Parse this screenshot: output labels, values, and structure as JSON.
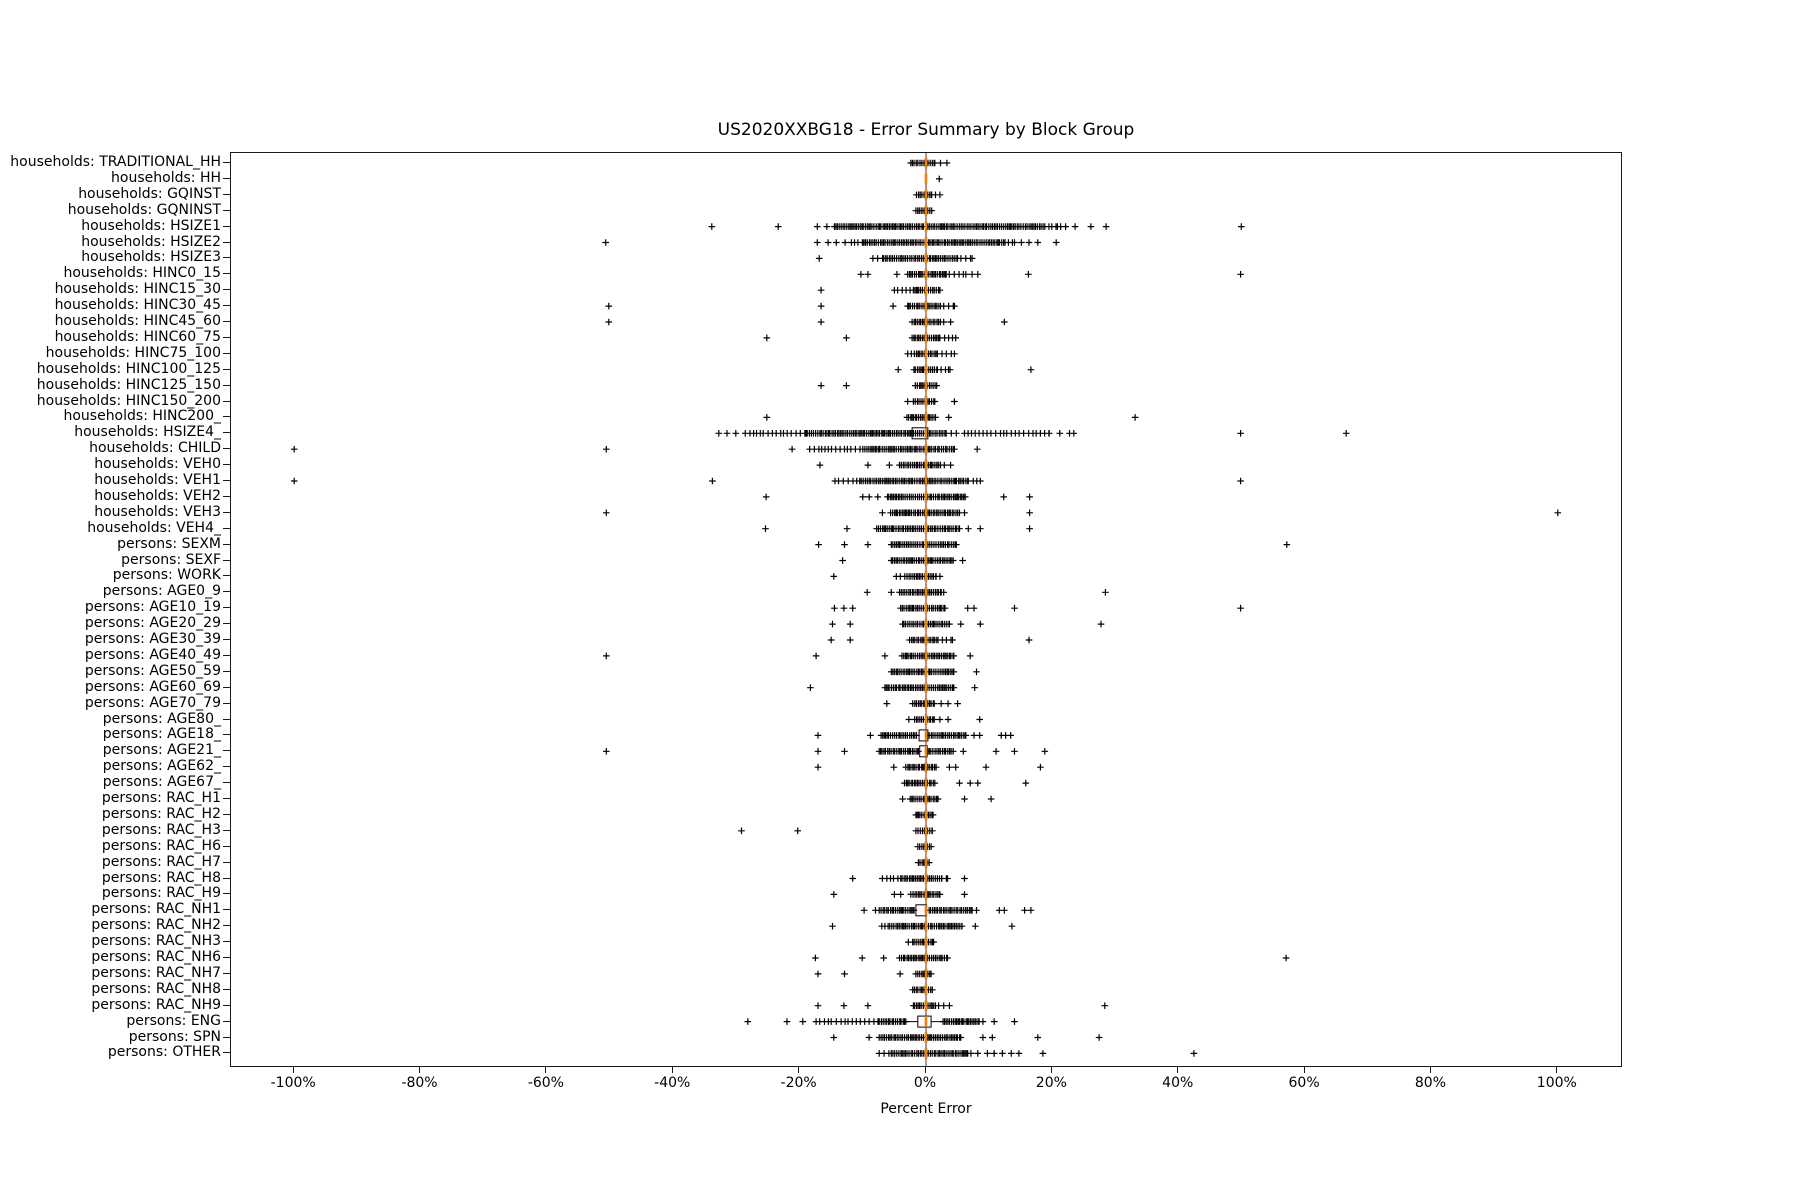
{
  "figure": {
    "title": "US2020XXBG18 - Error Summary by Block Group",
    "x_axis_label": "Percent Error"
  },
  "colors": {
    "marker": "#000000",
    "median": "#f07f0e",
    "zero_line": "#3c3c3c",
    "frame": "#1a1a1a",
    "box_fill": "#ffffff"
  },
  "chart_data": {
    "type": "scatter",
    "subtype": "horizontal-boxplot-fliers",
    "title": "US2020XXBG18 - Error Summary by Block Group",
    "xlabel": "Percent Error",
    "ylabel": "",
    "xlim": [
      -110,
      110
    ],
    "grid": false,
    "legend": "none",
    "x_ticks": [
      {
        "label": "-100%",
        "value": -100
      },
      {
        "label": "-80%",
        "value": -80
      },
      {
        "label": "-60%",
        "value": -60
      },
      {
        "label": "-40%",
        "value": -40
      },
      {
        "label": "-20%",
        "value": -20
      },
      {
        "label": "0%",
        "value": 0
      },
      {
        "label": "20%",
        "value": 20
      },
      {
        "label": "40%",
        "value": 40
      },
      {
        "label": "60%",
        "value": 60
      },
      {
        "label": "80%",
        "value": 80
      },
      {
        "label": "100%",
        "value": 100
      }
    ],
    "rows": [
      {
        "label": "households: TRADITIONAL_HH",
        "median": 0,
        "bands": [
          [
            -2.4,
            1.4,
            3
          ]
        ],
        "outliers": [
          2.3,
          3.3
        ]
      },
      {
        "label": "households: HH",
        "median": 0,
        "bands": [],
        "outliers": [
          2.1
        ]
      },
      {
        "label": "households: GQINST",
        "median": 0,
        "bands": [
          [
            -1.5,
            0.9,
            3
          ]
        ],
        "outliers": [
          1.5,
          2.2
        ]
      },
      {
        "label": "households: GQNINST",
        "median": 0,
        "bands": [
          [
            -1.6,
            0.9,
            3
          ]
        ],
        "outliers": []
      },
      {
        "label": "households: HSIZE1",
        "median": 0,
        "bands": [
          [
            -14.5,
            18.8,
            3
          ],
          [
            18.8,
            20.8,
            2
          ]
        ],
        "outliers": [
          -33.9,
          -23.4,
          -17.2,
          -15.7,
          21.3,
          22.1,
          23.6,
          26.1,
          28.5,
          49.9
        ]
      },
      {
        "label": "households: HSIZE2",
        "median": 0,
        "bands": [
          [
            -10,
            12.5,
            3
          ],
          [
            -11.8,
            -10,
            2
          ],
          [
            12.5,
            14,
            2
          ]
        ],
        "outliers": [
          -50.7,
          -17.2,
          -15.5,
          -14.2,
          -12.8,
          15.1,
          16.3,
          17.7,
          20.6
        ]
      },
      {
        "label": "households: HSIZE3",
        "median": 0,
        "bands": [
          [
            -6.7,
            5,
            3
          ],
          [
            -8.4,
            -6.7,
            2
          ],
          [
            5,
            7.3,
            2
          ]
        ],
        "outliers": [
          -16.9
        ]
      },
      {
        "label": "households: HINC0_15",
        "median": 0,
        "bands": [
          [
            -2.9,
            3.2,
            3
          ],
          [
            3.2,
            6.3,
            2
          ]
        ],
        "outliers": [
          -10.3,
          -9.2,
          -4.6,
          7.3,
          8.2,
          16.2,
          49.8
        ]
      },
      {
        "label": "households: HINC15_30",
        "median": 0,
        "bands": [
          [
            -2,
            2.2,
            3
          ],
          [
            -5,
            -2,
            2
          ]
        ],
        "outliers": [
          -16.6
        ]
      },
      {
        "label": "households: HINC30_45",
        "median": 0,
        "bands": [
          [
            -2.9,
            2.3,
            3
          ],
          [
            2.8,
            4.5,
            2
          ]
        ],
        "outliers": [
          -50.2,
          -16.6,
          -5.2
        ]
      },
      {
        "label": "households: HINC45_60",
        "median": 0,
        "bands": [
          [
            -2.2,
            2.3,
            3
          ]
        ],
        "outliers": [
          -50.2,
          -16.6,
          2.8,
          3.9,
          12.4
        ]
      },
      {
        "label": "households: HINC60_75",
        "median": 0,
        "bands": [
          [
            -2.2,
            2,
            3
          ],
          [
            2.2,
            4.2,
            2
          ]
        ],
        "outliers": [
          -25.2,
          -12.6,
          4.7
        ]
      },
      {
        "label": "households: HINC75_100",
        "median": 0,
        "bands": [
          [
            -1.5,
            1.8,
            3
          ],
          [
            -2.9,
            -1.5,
            2
          ],
          [
            1.8,
            4.5,
            2
          ]
        ],
        "outliers": []
      },
      {
        "label": "households: HINC100_125",
        "median": 0,
        "bands": [
          [
            -1.9,
            1.8,
            3
          ],
          [
            1.8,
            3.8,
            2
          ]
        ],
        "outliers": [
          -4.4,
          16.6
        ]
      },
      {
        "label": "households: HINC125_150",
        "median": 0,
        "bands": [
          [
            -1.7,
            1.7,
            3
          ]
        ],
        "outliers": [
          -16.6,
          -12.6
        ]
      },
      {
        "label": "households: HINC150_200",
        "median": 0,
        "bands": [
          [
            -2,
            1.4,
            3
          ]
        ],
        "outliers": [
          -2.9,
          4.5
        ]
      },
      {
        "label": "households: HINC200_",
        "median": 0,
        "bands": [
          [
            -3,
            1.5,
            3
          ]
        ],
        "outliers": [
          -25.2,
          3.6,
          33.1
        ]
      },
      {
        "label": "households: HSIZE4_",
        "median": 0,
        "bands": [
          [
            -19,
            -2.4,
            3
          ],
          [
            -28.6,
            -19,
            2
          ],
          [
            -2.2,
            3.2,
            3
          ],
          [
            6.1,
            19.5,
            2
          ],
          [
            19.5,
            23.4,
            1
          ]
        ],
        "outliers": [
          -32.8,
          -31.5,
          -30.1,
          4,
          4.8,
          49.8,
          66.5
        ],
        "box": [
          -2.2,
          0.3
        ]
      },
      {
        "label": "households: CHILD",
        "median": 0,
        "bands": [
          [
            -10,
            4.5,
            3
          ],
          [
            -18.4,
            -10,
            2
          ]
        ],
        "outliers": [
          -100,
          -50.6,
          -21.2,
          8.1
        ]
      },
      {
        "label": "households: VEH0",
        "median": 0,
        "bands": [
          [
            -4.2,
            2.3,
            3
          ]
        ],
        "outliers": [
          -16.8,
          -9.2,
          -5.8,
          2.9,
          3.9
        ]
      },
      {
        "label": "households: VEH1",
        "median": 0,
        "bands": [
          [
            -10.5,
            6.7,
            3
          ],
          [
            -14.4,
            -10.5,
            2
          ],
          [
            6.7,
            8.6,
            2
          ]
        ],
        "outliers": [
          -100,
          -33.8,
          49.8
        ]
      },
      {
        "label": "households: VEH2",
        "median": 0,
        "bands": [
          [
            -6.1,
            6.2,
            3
          ],
          [
            -10,
            -6.1,
            1
          ]
        ],
        "outliers": [
          -25.3,
          12.3,
          16.4
        ]
      },
      {
        "label": "households: VEH3",
        "median": 0,
        "bands": [
          [
            -5.6,
            5.3,
            3
          ]
        ],
        "outliers": [
          -50.6,
          -6.9,
          6.1,
          16.4,
          100
        ]
      },
      {
        "label": "households: VEH4_",
        "median": 0,
        "bands": [
          [
            -7.8,
            5.3,
            3
          ]
        ],
        "outliers": [
          -25.4,
          -12.5,
          6.7,
          8.6,
          16.4
        ]
      },
      {
        "label": "persons: SEXM",
        "median": 0,
        "bands": [
          [
            -5.5,
            4.8,
            3
          ]
        ],
        "outliers": [
          -17,
          -12.9,
          -9.2,
          57.1
        ]
      },
      {
        "label": "persons: SEXF",
        "median": 0,
        "bands": [
          [
            -5.5,
            4.3,
            3
          ]
        ],
        "outliers": [
          -13.2,
          5.8
        ]
      },
      {
        "label": "persons: WORK",
        "median": 0,
        "bands": [
          [
            -3,
            1.6,
            3
          ],
          [
            -4.7,
            -3,
            2
          ],
          [
            1.6,
            2.2,
            2
          ]
        ],
        "outliers": [
          -14.6
        ]
      },
      {
        "label": "persons: AGE0_9",
        "median": 0,
        "bands": [
          [
            -4.2,
            2.4,
            3
          ]
        ],
        "outliers": [
          -9.3,
          -5.5,
          2.8,
          28.4
        ]
      },
      {
        "label": "persons: AGE10_19",
        "median": 0,
        "bands": [
          [
            -4,
            3,
            3
          ]
        ],
        "outliers": [
          -14.5,
          -13,
          -11.6,
          6.6,
          7.6,
          14,
          49.8
        ]
      },
      {
        "label": "persons: AGE20_29",
        "median": 0,
        "bands": [
          [
            -3.7,
            3.7,
            3
          ]
        ],
        "outliers": [
          -14.8,
          -12,
          5.5,
          8.6,
          27.7
        ]
      },
      {
        "label": "persons: AGE30_39",
        "median": 0,
        "bands": [
          [
            -2.6,
            1.9,
            3
          ],
          [
            1.9,
            4.2,
            2
          ]
        ],
        "outliers": [
          -15,
          -12,
          16.3
        ]
      },
      {
        "label": "persons: AGE40_49",
        "median": 0,
        "bands": [
          [
            -3.8,
            4.4,
            3
          ]
        ],
        "outliers": [
          -50.6,
          -17.4,
          -6.5,
          7
        ]
      },
      {
        "label": "persons: AGE50_59",
        "median": 0,
        "bands": [
          [
            -5.5,
            4.4,
            3
          ]
        ],
        "outliers": [
          8
        ]
      },
      {
        "label": "persons: AGE60_69",
        "median": 0,
        "bands": [
          [
            -6.5,
            4.4,
            3
          ]
        ],
        "outliers": [
          -18.3,
          7.7
        ]
      },
      {
        "label": "persons: AGE70_79",
        "median": 0,
        "bands": [
          [
            -2.1,
            1.3,
            3
          ]
        ],
        "outliers": [
          -6.2,
          2.4,
          3.5,
          5
        ]
      },
      {
        "label": "persons: AGE80_",
        "median": 0,
        "bands": [
          [
            -1.8,
            1.3,
            3
          ]
        ],
        "outliers": [
          -2.7,
          2.2,
          3.5,
          8.5
        ]
      },
      {
        "label": "persons: AGE18_",
        "median": 0,
        "bands": [
          [
            -7.1,
            -1.5,
            3
          ],
          [
            0.5,
            6.3,
            3
          ]
        ],
        "outliers": [
          -17.1,
          -8.8,
          7.6,
          8.5,
          11.9,
          12.6,
          13.4
        ],
        "box": [
          -1.1,
          0.3
        ]
      },
      {
        "label": "persons: AGE21_",
        "median": 0,
        "bands": [
          [
            -7.4,
            -1.2,
            3
          ],
          [
            0.3,
            4.3,
            3
          ]
        ],
        "outliers": [
          -50.6,
          -17.1,
          -12.9,
          5.9,
          11.1,
          14,
          18.8
        ],
        "box": [
          -1,
          0.2
        ]
      },
      {
        "label": "persons: AGE62_",
        "median": 0,
        "bands": [
          [
            -3.2,
            1.6,
            3
          ]
        ],
        "outliers": [
          -17.1,
          -5.1,
          3.7,
          4.7,
          9.5,
          18.1
        ]
      },
      {
        "label": "persons: AGE67_",
        "median": 0,
        "bands": [
          [
            -3.4,
            1.4,
            3
          ]
        ],
        "outliers": [
          5.3,
          7,
          8.2,
          15.8
        ]
      },
      {
        "label": "persons: RAC_H1",
        "median": 0,
        "bands": [
          [
            -2.5,
            1.9,
            3
          ]
        ],
        "outliers": [
          -3.7,
          6.1,
          10.3
        ]
      },
      {
        "label": "persons: RAC_H2",
        "median": 0,
        "bands": [
          [
            -1.6,
            1.1,
            3
          ]
        ],
        "outliers": []
      },
      {
        "label": "persons: RAC_H3",
        "median": 0,
        "bands": [
          [
            -1.6,
            1,
            3
          ]
        ],
        "outliers": [
          -29.2,
          -20.3
        ]
      },
      {
        "label": "persons: RAC_H6",
        "median": 0,
        "bands": [
          [
            -1.3,
            0.8,
            3
          ]
        ],
        "outliers": []
      },
      {
        "label": "persons: RAC_H7",
        "median": 0,
        "bands": [
          [
            -1.2,
            0.5,
            3
          ]
        ],
        "outliers": []
      },
      {
        "label": "persons: RAC_H8",
        "median": 0,
        "bands": [
          [
            -4,
            2.5,
            3
          ],
          [
            -6.9,
            -4,
            2
          ],
          [
            2.5,
            3.4,
            2
          ]
        ],
        "outliers": [
          -11.6,
          6.1
        ]
      },
      {
        "label": "persons: RAC_H9",
        "median": 0,
        "bands": [
          [
            -2.4,
            2.2,
            3
          ]
        ],
        "outliers": [
          -14.6,
          -5,
          -4,
          6.1
        ]
      },
      {
        "label": "persons: RAC_NH1",
        "median": 0,
        "bands": [
          [
            -7.4,
            -1.9,
            3
          ],
          [
            0.5,
            7.3,
            3
          ]
        ],
        "outliers": [
          -9.8,
          -8,
          8,
          11.6,
          12.4,
          15.6,
          16.6
        ],
        "box": [
          -1.6,
          0.1
        ]
      },
      {
        "label": "persons: RAC_NH2",
        "median": 0,
        "bands": [
          [
            -6,
            5.7,
            3
          ],
          [
            -7,
            -6,
            2
          ]
        ],
        "outliers": [
          -14.8,
          7.8,
          13.6
        ]
      },
      {
        "label": "persons: RAC_NH3",
        "median": 0,
        "bands": [
          [
            -2.1,
            1.2,
            3
          ]
        ],
        "outliers": [
          -2.8
        ]
      },
      {
        "label": "persons: RAC_NH6",
        "median": 0,
        "bands": [
          [
            -4.2,
            3.4,
            3
          ]
        ],
        "outliers": [
          -17.5,
          -10.1,
          -6.7,
          57
        ]
      },
      {
        "label": "persons: RAC_NH7",
        "median": 0,
        "bands": [
          [
            -1.6,
            0.8,
            3
          ]
        ],
        "outliers": [
          -17.1,
          -12.9,
          -4.1
        ]
      },
      {
        "label": "persons: RAC_NH8",
        "median": 0,
        "bands": [
          [
            -2.1,
            1,
            3
          ]
        ],
        "outliers": []
      },
      {
        "label": "persons: RAC_NH9",
        "median": 0,
        "bands": [
          [
            -2,
            1.5,
            3
          ]
        ],
        "outliers": [
          -17.1,
          -13,
          -9.2,
          2,
          2.8,
          3.7,
          28.3
        ]
      },
      {
        "label": "persons: ENG",
        "median": 0,
        "bands": [
          [
            -7.4,
            -3.2,
            3
          ],
          [
            -17.4,
            -7.4,
            2
          ],
          [
            2.7,
            8.4,
            3
          ]
        ],
        "outliers": [
          -28.2,
          -22,
          -19.5,
          9,
          10.8,
          14
        ],
        "box": [
          -1.3,
          0.8
        ],
        "whisker": [
          -3.2,
          2.7
        ]
      },
      {
        "label": "persons: SPN",
        "median": 0,
        "bands": [
          [
            -7.4,
            5.5,
            3
          ]
        ],
        "outliers": [
          -14.6,
          -9,
          9,
          10.5,
          17.7,
          27.4
        ]
      },
      {
        "label": "persons: OTHER",
        "median": 0,
        "bands": [
          [
            -5.5,
            6.6,
            3
          ],
          [
            -7.4,
            -5.5,
            2
          ],
          [
            7.1,
            10.8,
            1
          ]
        ],
        "outliers": [
          12.1,
          13.5,
          14.7,
          18.5,
          42.4
        ]
      }
    ]
  }
}
